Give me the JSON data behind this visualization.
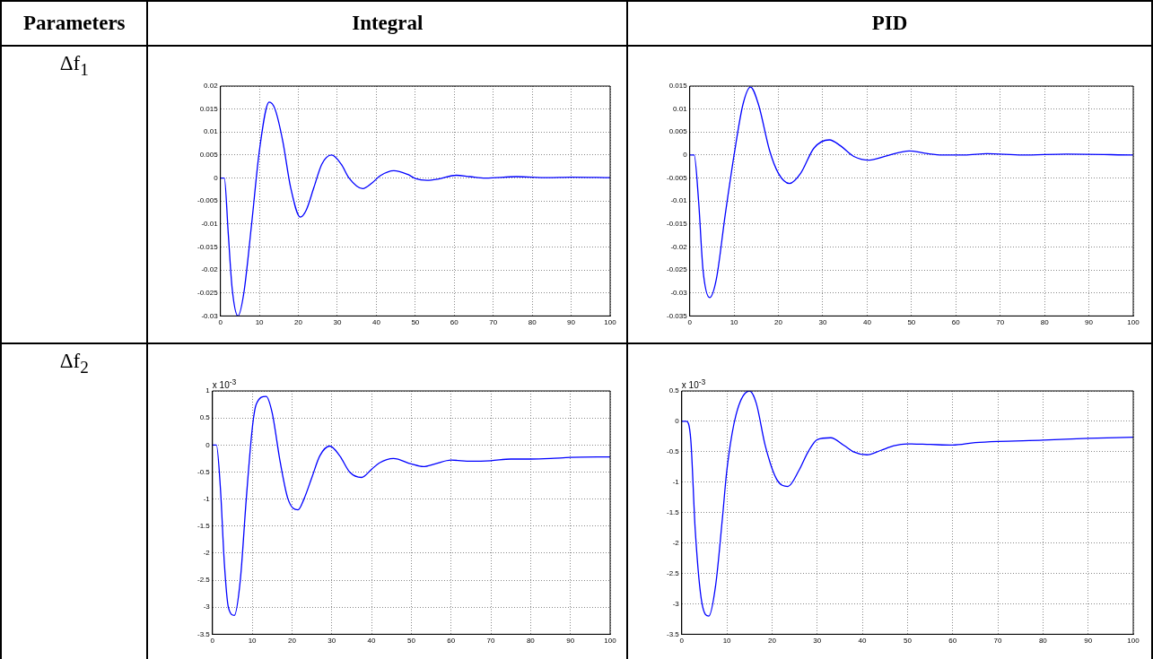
{
  "chart_data": [
    {
      "type": "line",
      "x": [
        0,
        1,
        2,
        3,
        4.5,
        6,
        8,
        10,
        12.5,
        14,
        16,
        18,
        20.5,
        22,
        24,
        26,
        28.5,
        31,
        33,
        36.5,
        39,
        41,
        44.5,
        48,
        50,
        53,
        56,
        60.5,
        64,
        68,
        76,
        84,
        90,
        100
      ],
      "series": [
        {
          "color": "#0000ff",
          "values": [
            0,
            0,
            -0.012,
            -0.024,
            -0.03,
            -0.025,
            -0.01,
            0.006,
            0.0165,
            0.015,
            0.008,
            -0.002,
            -0.0085,
            -0.007,
            -0.002,
            0.003,
            0.005,
            0.003,
            0,
            -0.0023,
            -0.001,
            0.0005,
            0.0016,
            0.0008,
            -0.0001,
            -0.0005,
            -0.0002,
            0.0006,
            0.0003,
            0,
            0.0003,
            0.0001,
            0.0002,
            0.0001
          ]
        }
      ],
      "xlim": [
        0,
        100
      ],
      "xticks": [
        0,
        10,
        20,
        30,
        40,
        50,
        60,
        70,
        80,
        90,
        100
      ],
      "ylim": [
        -0.03,
        0.02
      ],
      "yticks": [
        -0.03,
        -0.025,
        -0.02,
        -0.015,
        -0.01,
        -0.005,
        0,
        0.005,
        0.01,
        0.015,
        0.02
      ],
      "grid": true,
      "marker": "none",
      "line_style": "solid"
    },
    {
      "type": "line",
      "x": [
        0,
        1,
        2,
        3,
        4.5,
        6,
        8,
        10,
        12,
        13.7,
        15.5,
        18,
        20,
        22.5,
        25,
        28,
        31.5,
        34,
        37,
        40.5,
        44,
        49.5,
        53,
        57,
        62,
        67,
        75,
        85,
        100
      ],
      "series": [
        {
          "color": "#0000ff",
          "values": [
            0,
            0,
            -0.01,
            -0.025,
            -0.031,
            -0.027,
            -0.013,
            0,
            0.011,
            0.0148,
            0.011,
            0.001,
            -0.004,
            -0.0062,
            -0.004,
            0.0015,
            0.0033,
            0.002,
            -0.0003,
            -0.0011,
            -0.0003,
            0.0009,
            0.0004,
            0,
            0,
            0.0003,
            0,
            0.0002,
            0
          ]
        }
      ],
      "xlim": [
        0,
        100
      ],
      "xticks": [
        0,
        10,
        20,
        30,
        40,
        50,
        60,
        70,
        80,
        90,
        100
      ],
      "ylim": [
        -0.035,
        0.015
      ],
      "yticks": [
        -0.035,
        -0.03,
        -0.025,
        -0.02,
        -0.015,
        -0.01,
        -0.005,
        0,
        0.005,
        0.01,
        0.015
      ],
      "grid": true,
      "marker": "none",
      "line_style": "solid"
    },
    {
      "type": "line",
      "x": [
        0,
        1,
        2,
        3,
        4,
        5.5,
        7,
        8.5,
        10,
        11,
        13.5,
        15,
        17,
        19,
        21.5,
        23,
        25,
        27,
        29.5,
        32,
        34.5,
        37.5,
        40,
        42,
        45.5,
        50,
        53,
        56,
        60,
        65,
        70,
        75,
        80,
        85,
        90,
        100
      ],
      "series": [
        {
          "color": "#0000ff",
          "values": [
            0,
            0,
            -0.8,
            -2.2,
            -3,
            -3.15,
            -2.5,
            -1,
            0.3,
            0.75,
            0.9,
            0.6,
            -0.3,
            -1,
            -1.2,
            -1,
            -0.6,
            -0.2,
            -0.02,
            -0.2,
            -0.5,
            -0.6,
            -0.45,
            -0.33,
            -0.25,
            -0.35,
            -0.4,
            -0.35,
            -0.28,
            -0.3,
            -0.29,
            -0.26,
            -0.26,
            -0.25,
            -0.23,
            -0.22
          ]
        }
      ],
      "xlim": [
        0,
        100
      ],
      "xticks": [
        0,
        10,
        20,
        30,
        40,
        50,
        60,
        70,
        80,
        90,
        100
      ],
      "ylim": [
        -3.5,
        1
      ],
      "yticks": [
        -3.5,
        -3,
        -2.5,
        -2,
        -1.5,
        -1,
        -0.5,
        0,
        0.5,
        1
      ],
      "grid": true,
      "marker": "none",
      "line_style": "solid",
      "annotations": [
        "x 10$^{-3}$"
      ]
    },
    {
      "type": "line",
      "x": [
        0,
        1,
        2,
        3,
        4.5,
        6,
        7.5,
        9,
        10,
        12,
        15,
        16.5,
        18.5,
        21,
        23.5,
        26,
        28,
        30,
        33,
        36,
        38,
        41,
        44,
        47,
        50,
        55,
        60,
        65,
        70,
        80,
        90,
        100
      ],
      "series": [
        {
          "color": "#0000ff",
          "values": [
            0,
            0,
            -0.3,
            -1.8,
            -3,
            -3.2,
            -2.7,
            -1.6,
            -0.8,
            0.1,
            0.5,
            0.3,
            -0.4,
            -0.95,
            -1.07,
            -0.8,
            -0.5,
            -0.3,
            -0.27,
            -0.4,
            -0.5,
            -0.55,
            -0.48,
            -0.4,
            -0.37,
            -0.38,
            -0.39,
            -0.35,
            -0.33,
            -0.31,
            -0.28,
            -0.26
          ]
        }
      ],
      "xlim": [
        0,
        100
      ],
      "xticks": [
        0,
        10,
        20,
        30,
        40,
        50,
        60,
        70,
        80,
        90,
        100
      ],
      "ylim": [
        -3.5,
        0.5
      ],
      "yticks": [
        -3.5,
        -3,
        -2.5,
        -2,
        -1.5,
        -1,
        -0.5,
        0,
        0.5
      ],
      "grid": true,
      "marker": "none",
      "line_style": "solid",
      "annotations": [
        "x 10$^{-3}$"
      ]
    },
    {
      "type": "other",
      "annotations": [
        "Parameters",
        "Integral",
        "PID",
        "Δf$_{1}$",
        "Δf$_{2}$"
      ]
    }
  ]
}
